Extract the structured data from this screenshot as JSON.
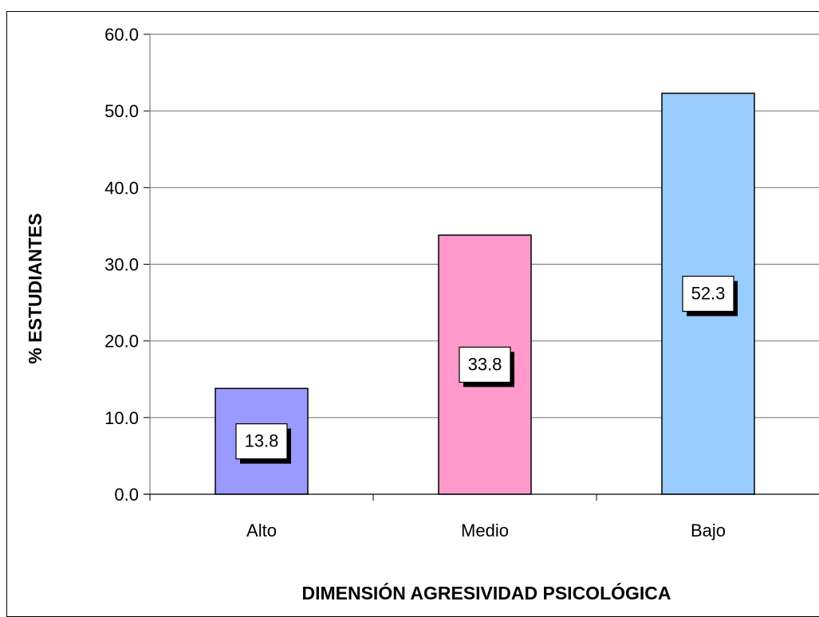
{
  "chart_data": {
    "type": "bar",
    "categories": [
      "Alto",
      "Medio",
      "Bajo"
    ],
    "values": [
      13.8,
      33.8,
      52.3
    ],
    "data_labels": [
      "13.8",
      "33.8",
      "52.3"
    ],
    "xlabel": "DIMENSIÓN AGRESIVIDAD PSICOLÓGICA",
    "ylabel": "% ESTUDIANTES",
    "ylim": [
      0,
      60
    ],
    "yticks": [
      "0.0",
      "10.0",
      "20.0",
      "30.0",
      "40.0",
      "50.0",
      "60.0"
    ],
    "grid": true,
    "legend": "none",
    "colors": [
      "#9999ff",
      "#ff99cc",
      "#99ccff"
    ]
  }
}
